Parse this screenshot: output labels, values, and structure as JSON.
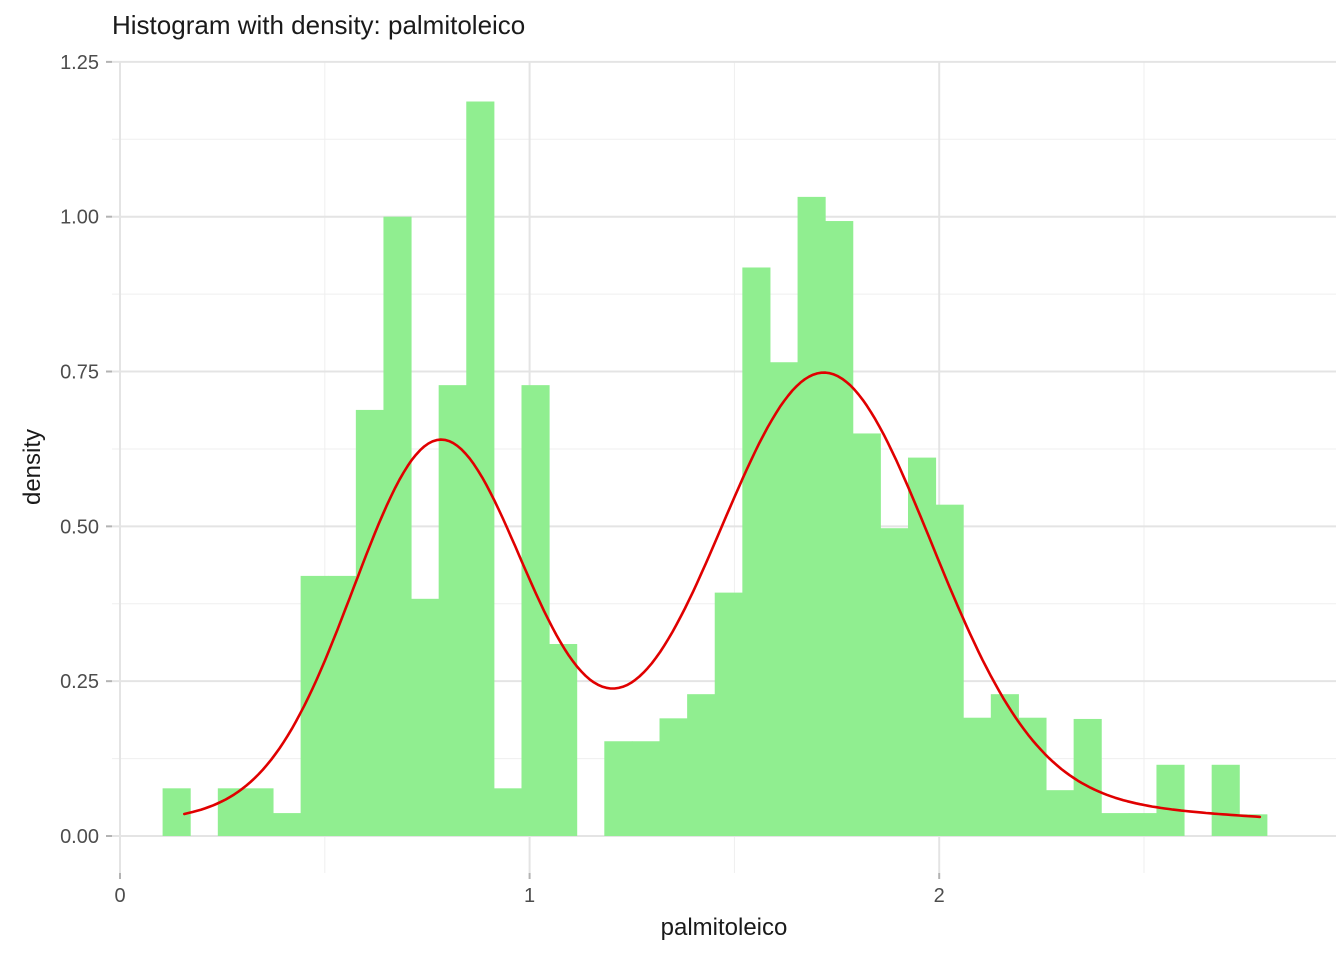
{
  "title": "Histogram with density: palmitoleico",
  "axes": {
    "x": {
      "label": "palmitoleico",
      "major_ticks": [
        0,
        1,
        2
      ],
      "tick_labels": [
        "0",
        "1",
        "2"
      ],
      "minor_gridlines": [
        0.5,
        1.5,
        2.5
      ]
    },
    "y": {
      "label": "density",
      "major_ticks": [
        0,
        0.25,
        0.5,
        0.75,
        1.0,
        1.25
      ],
      "tick_labels": [
        "0.00",
        "0.25",
        "0.50",
        "0.75",
        "1.00",
        "1.25"
      ],
      "minor_gridlines": [
        0.125,
        0.375,
        0.625,
        0.875,
        1.125
      ]
    }
  },
  "colors": {
    "background": "#FFFFFF",
    "bar_fill": "#90EE90",
    "curve": "#E00000",
    "grid_major": "#E4E4E4",
    "grid_minor": "#EFEFEF",
    "tick_mark": "#B3B3B3",
    "tick_text": "#4D4D4D",
    "axis_title_text": "#1A1A1A",
    "title_text": "#1A1A1A"
  },
  "chart_data": {
    "type": "bar",
    "subtype": "histogram_with_density_overlay",
    "title": "Histogram with density: palmitoleico",
    "xlabel": "palmitoleico",
    "ylabel": "density",
    "xlim": [
      -0.03,
      2.94
    ],
    "ylim": [
      -0.06,
      1.25
    ],
    "grid": "on",
    "legend": "none",
    "bin_start": 0.104,
    "bin_width": 0.0674,
    "bin_heights": [
      0.077,
      0,
      0.077,
      0.077,
      0.037,
      0.42,
      0.42,
      0.688,
      1.0,
      0.383,
      0.728,
      1.186,
      0.077,
      0.728,
      0.31,
      0,
      0.153,
      0.153,
      0.19,
      0.229,
      0.393,
      0.918,
      0.765,
      1.032,
      0.993,
      0.65,
      0.497,
      0.611,
      0.535,
      0.191,
      0.229,
      0.191,
      0.074,
      0.189,
      0.037,
      0.037,
      0.115,
      0,
      0.115,
      0.035
    ],
    "density_curve": {
      "x_start": 0.157,
      "x_end": 2.783,
      "model": "sum of gaussian bumps a*exp(-0.5*((x-m)/s)^2)",
      "components": [
        {
          "a": 0.585,
          "m": 0.78,
          "s": 0.21
        },
        {
          "a": 0.68,
          "m": 1.72,
          "s": 0.26
        },
        {
          "a": 0.07,
          "m": 1.5,
          "s": 1.0
        }
      ],
      "key_points": [
        {
          "x": 0.16,
          "y": 0.04,
          "note": "left end"
        },
        {
          "x": 0.78,
          "y": 0.64,
          "note": "left peak"
        },
        {
          "x": 1.25,
          "y": 0.25,
          "note": "valley"
        },
        {
          "x": 1.72,
          "y": 0.75,
          "note": "right peak"
        },
        {
          "x": 2.78,
          "y": 0.03,
          "note": "right end"
        }
      ]
    }
  }
}
